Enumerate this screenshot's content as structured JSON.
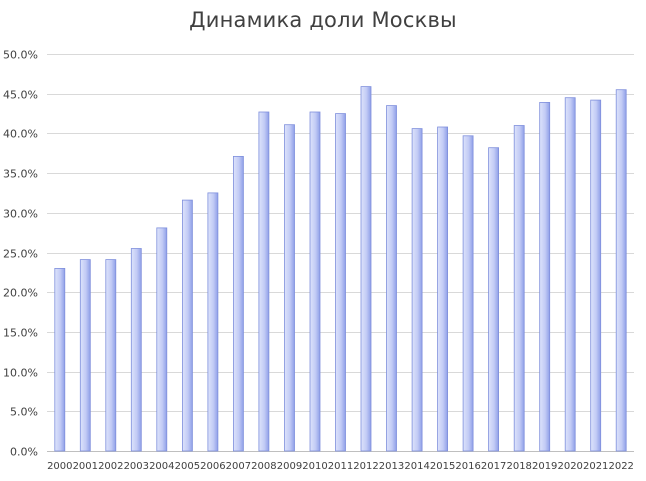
{
  "chart_data": {
    "type": "bar",
    "title": "Динамика доли Москвы",
    "xlabel": "",
    "ylabel": "",
    "categories": [
      "2000",
      "2001",
      "2002",
      "2003",
      "2004",
      "2005",
      "2006",
      "2007",
      "2008",
      "2009",
      "2010",
      "2011",
      "2012",
      "2013",
      "2014",
      "2015",
      "2016",
      "2017",
      "2018",
      "2019",
      "2020",
      "2021",
      "2022"
    ],
    "values": [
      23.0,
      24.1,
      24.1,
      25.5,
      28.1,
      31.6,
      32.5,
      37.1,
      42.7,
      41.1,
      42.7,
      42.5,
      45.9,
      43.5,
      40.6,
      40.8,
      39.7,
      38.2,
      41.0,
      43.9,
      44.5,
      44.2,
      45.5
    ],
    "y_ticks": [
      "0.0%",
      "5.0%",
      "10.0%",
      "15.0%",
      "20.0%",
      "25.0%",
      "30.0%",
      "35.0%",
      "40.0%",
      "45.0%",
      "50.0%"
    ],
    "ylim": [
      0,
      50
    ],
    "grid": true,
    "legend": "none",
    "colors": {
      "bar_fill_light": "#dde3fb",
      "bar_fill_dark": "#8f9fe8",
      "bar_stroke": "#7f8fdc",
      "grid": "#d9d9d9",
      "axis": "#bfbfbf",
      "text": "#404040"
    }
  }
}
